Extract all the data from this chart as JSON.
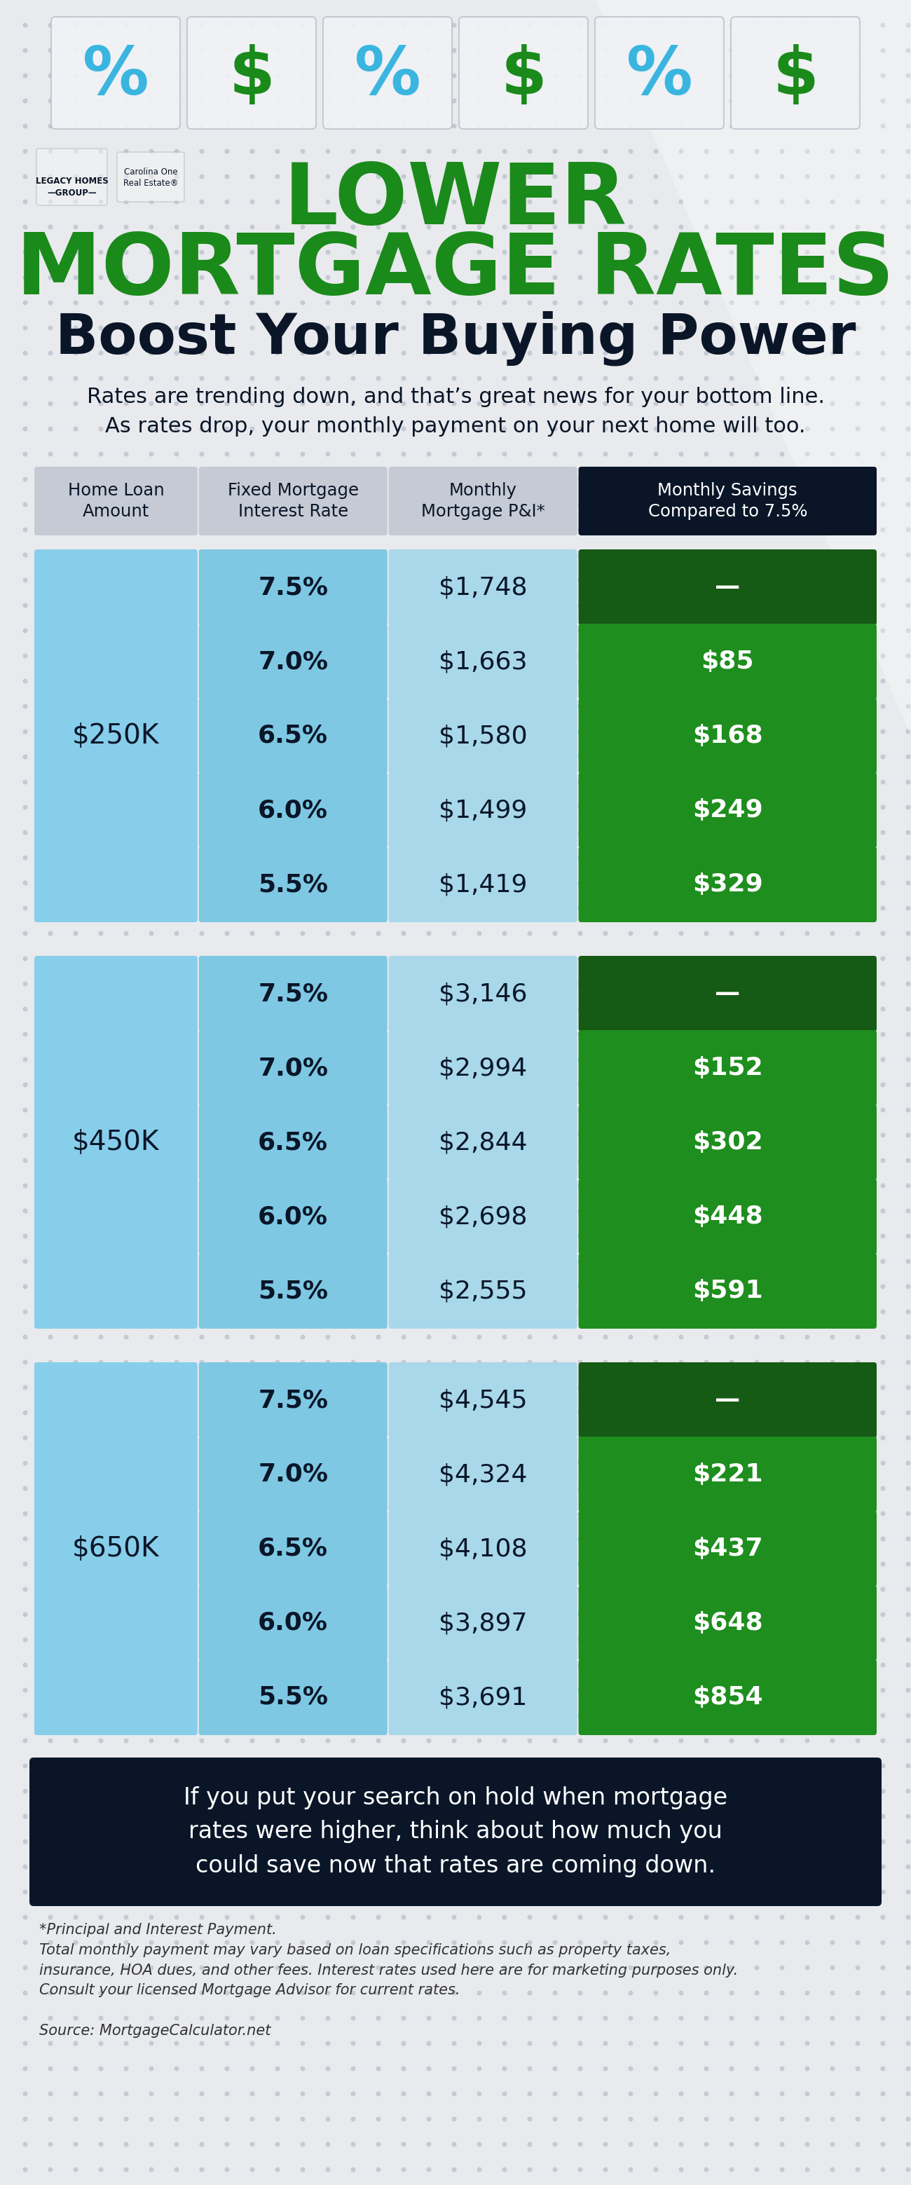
{
  "bg_color": "#e8eaed",
  "dot_color": "#c5cad4",
  "title_line1": "LOWER",
  "title_line2": "MORTGAGE RATES",
  "title_line3": "Boost Your Buying Power",
  "title_green": "#1a8a1a",
  "title_navy": "#0a1628",
  "subtitle": "Rates are trending down, and that’s great news for your bottom line.\nAs rates drop, your monthly payment on your next home will too.",
  "col_headers": [
    "Home Loan\nAmount",
    "Fixed Mortgage\nInterest Rate",
    "Monthly\nMortgage P&I*",
    "Monthly Savings\nCompared to 7.5%"
  ],
  "header_bg": [
    "#c5cad4",
    "#c5cad4",
    "#c5cad4",
    "#0a1628"
  ],
  "header_text_colors": [
    "#0a1628",
    "#0a1628",
    "#0a1628",
    "#ffffff"
  ],
  "loan_groups": [
    {
      "label": "$250K",
      "rows": [
        {
          "rate": "7.5%",
          "payment": "$1,748",
          "savings": "—",
          "savings_dark": true
        },
        {
          "rate": "7.0%",
          "payment": "$1,663",
          "savings": "$85",
          "savings_dark": false
        },
        {
          "rate": "6.5%",
          "payment": "$1,580",
          "savings": "$168",
          "savings_dark": false
        },
        {
          "rate": "6.0%",
          "payment": "$1,499",
          "savings": "$249",
          "savings_dark": false
        },
        {
          "rate": "5.5%",
          "payment": "$1,419",
          "savings": "$329",
          "savings_dark": false
        }
      ]
    },
    {
      "label": "$450K",
      "rows": [
        {
          "rate": "7.5%",
          "payment": "$3,146",
          "savings": "—",
          "savings_dark": true
        },
        {
          "rate": "7.0%",
          "payment": "$2,994",
          "savings": "$152",
          "savings_dark": false
        },
        {
          "rate": "6.5%",
          "payment": "$2,844",
          "savings": "$302",
          "savings_dark": false
        },
        {
          "rate": "6.0%",
          "payment": "$2,698",
          "savings": "$448",
          "savings_dark": false
        },
        {
          "rate": "5.5%",
          "payment": "$2,555",
          "savings": "$591",
          "savings_dark": false
        }
      ]
    },
    {
      "label": "$650K",
      "rows": [
        {
          "rate": "7.5%",
          "payment": "$4,545",
          "savings": "—",
          "savings_dark": true
        },
        {
          "rate": "7.0%",
          "payment": "$4,324",
          "savings": "$221",
          "savings_dark": false
        },
        {
          "rate": "6.5%",
          "payment": "$4,108",
          "savings": "$437",
          "savings_dark": false
        },
        {
          "rate": "6.0%",
          "payment": "$3,897",
          "savings": "$648",
          "savings_dark": false
        },
        {
          "rate": "5.5%",
          "payment": "$3,691",
          "savings": "$854",
          "savings_dark": false
        }
      ]
    }
  ],
  "col_blue_span": "#87ceeb",
  "col_blue_cell": "#7ec8e3",
  "col_blue_lighter": "#a8d8ea",
  "savings_green_dark": "#155a15",
  "savings_green_light": "#1e8e1e",
  "footer_bg": "#0a1628",
  "footer_text": "If you put your search on hold when mortgage\nrates were higher, think about how much you\ncould save now that rates are coming down.",
  "footnote": "*Principal and Interest Payment.\nTotal monthly payment may vary based on loan specifications such as property taxes,\ninsurance, HOA dues, and other fees. Interest rates used here are for marketing purposes only.\nConsult your licensed Mortgage Advisor for current rates.\n\nSource: MortgageCalculator.net"
}
